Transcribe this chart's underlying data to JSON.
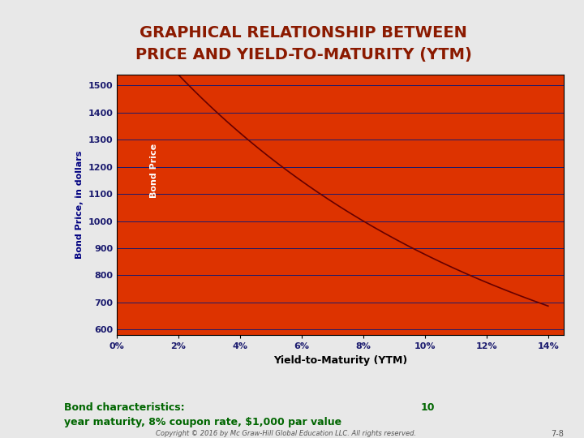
{
  "title_line1": "GRAPHICAL RELATIONSHIP BETWEEN",
  "title_line2": "PRICE AND YIELD-TO-MATURITY (YTM)",
  "title_color": "#8B1A00",
  "title_bg_color": "#E8E8E8",
  "plot_face_color": "#DD3300",
  "outer_bg_color": "#E8E8E8",
  "left_strip_color": "#2E6B5E",
  "white_box_color": "#FFFFFF",
  "ylabel": "Bond Price, in dollars",
  "xlabel": "Yield-to-Maturity (YTM)",
  "curve_label": "Bond Price",
  "curve_color": "#660000",
  "grid_color": "#1A1A6E",
  "tick_label_color": "#FFFFFF",
  "axis_label_color": "#000080",
  "ytick_label_color": "#1A1A6E",
  "xtick_label_color": "#1A1A6E",
  "yticks": [
    600,
    700,
    800,
    900,
    1000,
    1100,
    1200,
    1300,
    1400,
    1500
  ],
  "xticks": [
    0,
    2,
    4,
    6,
    8,
    10,
    12,
    14
  ],
  "xtick_labels": [
    "0%",
    "2%",
    "4%",
    "6%",
    "8%",
    "10%",
    "12%",
    "14%"
  ],
  "ylim": [
    580,
    1540
  ],
  "xlim": [
    0,
    14.5
  ],
  "footnote_color": "#006600",
  "footnote1": "Bond characteristics:",
  "footnote1_num": "10",
  "footnote2": "year maturity, 8% coupon rate, $1,000 par value",
  "copyright": "Copyright © 2016 by Mc Graw-Hill Global Education LLC. All rights reserved.",
  "slide_number": "7-8",
  "coupon": 80,
  "par": 1000,
  "n": 10
}
